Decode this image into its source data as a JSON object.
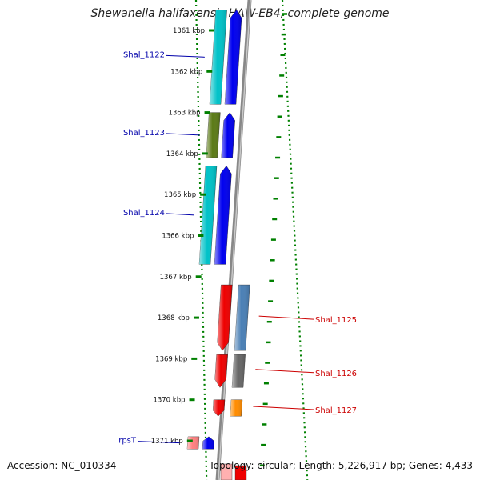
{
  "title": "Shewanella halifaxensis HAW-EB4, complete genome",
  "accession": "Accession: NC_010334",
  "topology": "Topology: circular; Length: 5,226,917 bp; Genes: 4,433",
  "scale_unit": "kbp",
  "ruler": {
    "start_kbp": 1360.5,
    "end_kbp": 1372.0,
    "ticks_kbp": [
      1361,
      1362,
      1363,
      1364,
      1365,
      1366,
      1367,
      1368,
      1369,
      1370,
      1371
    ]
  },
  "genes": [
    {
      "label": "Shal_1122",
      "strand": "minus",
      "start_kbp": 1360.5,
      "end_kbp": 1362.8,
      "cog_color": "#00c2c8",
      "label_color": "#0000aa"
    },
    {
      "label": "Shal_1123",
      "strand": "minus",
      "start_kbp": 1363.0,
      "end_kbp": 1364.1,
      "cog_color": "#5b7a16",
      "label_color": "#0000aa"
    },
    {
      "label": "Shal_1124",
      "strand": "minus",
      "start_kbp": 1364.3,
      "end_kbp": 1366.7,
      "cog_color": "#00c2c8",
      "label_color": "#0000aa"
    },
    {
      "label": "Shal_1125",
      "strand": "plus",
      "start_kbp": 1367.2,
      "end_kbp": 1368.8,
      "cog_color": "#4a7fb5",
      "label_color": "#cc0000"
    },
    {
      "label": "Shal_1126",
      "strand": "plus",
      "start_kbp": 1368.9,
      "end_kbp": 1369.7,
      "cog_color": "#666666",
      "label_color": "#cc0000"
    },
    {
      "label": "Shal_1127",
      "strand": "plus",
      "start_kbp": 1370.0,
      "end_kbp": 1370.4,
      "cog_color": "#ff8c00",
      "label_color": "#cc0000"
    },
    {
      "label": "rpsT",
      "strand": "minus",
      "start_kbp": 1370.9,
      "end_kbp": 1371.2,
      "cog_color": "#ff8080",
      "label_color": "#0000aa"
    }
  ],
  "colors": {
    "backbone": "#888888",
    "plus_strand_arrow": "#ee0000",
    "minus_strand_arrow": "#0000ee",
    "ruler_tick": "#008000"
  }
}
